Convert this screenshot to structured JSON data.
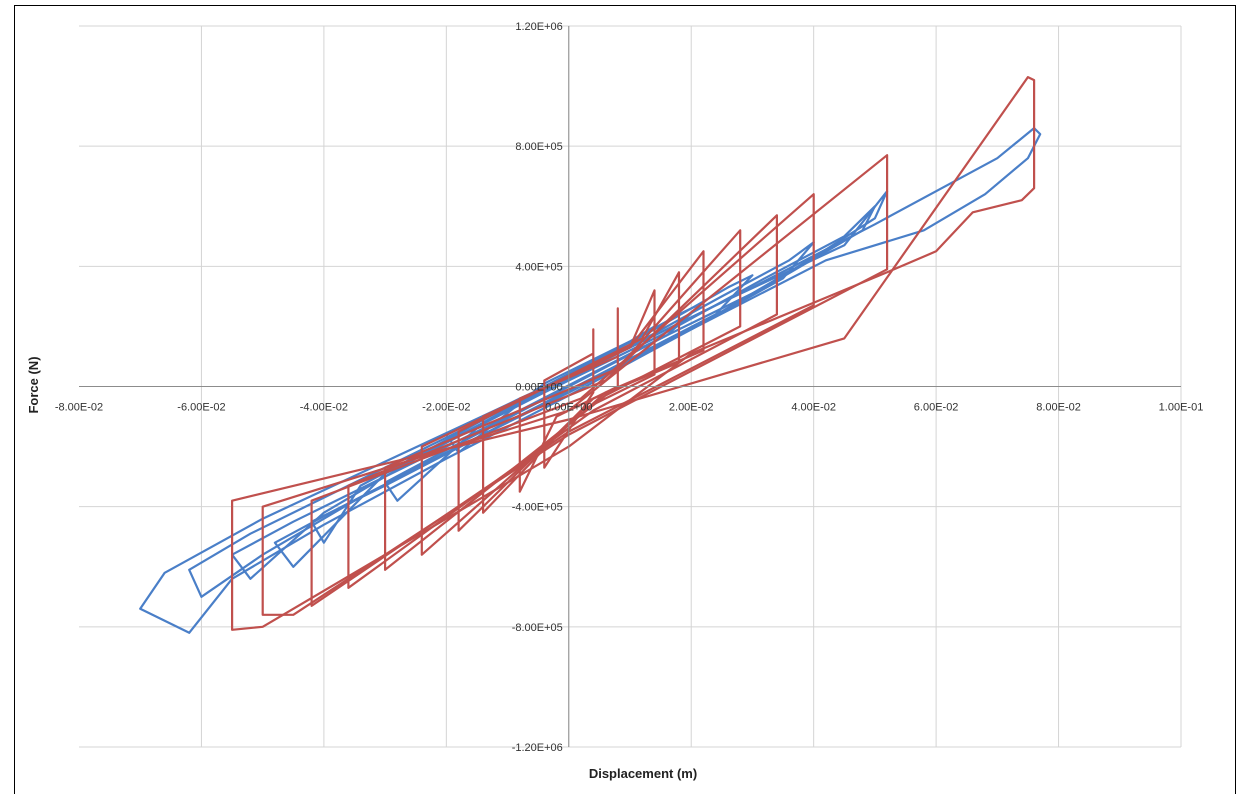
{
  "chart_data": {
    "type": "line",
    "title": "",
    "xlabel": "Displacement (m)",
    "ylabel": "Force (N)",
    "xlim": [
      -0.08,
      0.1
    ],
    "ylim": [
      -1200000,
      1200000
    ],
    "grid": true,
    "x_ticks": [
      -0.08,
      -0.06,
      -0.04,
      -0.02,
      0.0,
      0.02,
      0.04,
      0.06,
      0.08,
      0.1
    ],
    "x_tick_labels": [
      "-8.00E-02",
      "-6.00E-02",
      "-4.00E-02",
      "-2.00E-02",
      "0.00E+00",
      "2.00E-02",
      "4.00E-02",
      "6.00E-02",
      "8.00E-02",
      "1.00E-01"
    ],
    "y_ticks": [
      1200000,
      800000,
      400000,
      0,
      -400000,
      -800000,
      -1200000
    ],
    "y_tick_labels": [
      "1.20E+06",
      "8.00E+05",
      "4.00E+05",
      "0.00E+00",
      "-4.00E+05",
      "-8.00E+05",
      "-1.20E+06"
    ],
    "series": [
      {
        "color": "#4a7fc8",
        "loops": [
          [
            [
              -0.062,
              -820000
            ],
            [
              -0.07,
              -740000
            ],
            [
              -0.066,
              -620000
            ],
            [
              -0.05,
              -440000
            ],
            [
              -0.03,
              -250000
            ],
            [
              -0.01,
              -60000
            ],
            [
              0.01,
              130000
            ],
            [
              0.03,
              330000
            ],
            [
              0.05,
              540000
            ],
            [
              0.07,
              760000
            ],
            [
              0.076,
              860000
            ],
            [
              0.077,
              840000
            ],
            [
              0.075,
              760000
            ],
            [
              0.068,
              640000
            ],
            [
              0.058,
              520000
            ],
            [
              0.042,
              420000
            ],
            [
              0.02,
              190000
            ],
            [
              0.0,
              -30000
            ],
            [
              -0.02,
              -240000
            ],
            [
              -0.04,
              -460000
            ],
            [
              -0.055,
              -640000
            ],
            [
              -0.062,
              -820000
            ]
          ],
          [
            [
              -0.06,
              -700000
            ],
            [
              -0.062,
              -610000
            ],
            [
              -0.052,
              -490000
            ],
            [
              -0.035,
              -320000
            ],
            [
              -0.015,
              -120000
            ],
            [
              0.005,
              80000
            ],
            [
              0.025,
              280000
            ],
            [
              0.045,
              470000
            ],
            [
              0.052,
              650000
            ],
            [
              0.05,
              560000
            ],
            [
              0.04,
              430000
            ],
            [
              0.025,
              250000
            ],
            [
              0.005,
              40000
            ],
            [
              -0.015,
              -170000
            ],
            [
              -0.035,
              -380000
            ],
            [
              -0.05,
              -560000
            ],
            [
              -0.06,
              -700000
            ]
          ],
          [
            [
              -0.052,
              -640000
            ],
            [
              -0.055,
              -560000
            ],
            [
              -0.045,
              -450000
            ],
            [
              -0.028,
              -280000
            ],
            [
              -0.008,
              -80000
            ],
            [
              0.012,
              130000
            ],
            [
              0.032,
              330000
            ],
            [
              0.048,
              520000
            ],
            [
              0.05,
              600000
            ],
            [
              0.045,
              500000
            ],
            [
              0.032,
              360000
            ],
            [
              0.015,
              170000
            ],
            [
              -0.005,
              -30000
            ],
            [
              -0.025,
              -240000
            ],
            [
              -0.04,
              -420000
            ],
            [
              -0.052,
              -640000
            ]
          ],
          [
            [
              -0.045,
              -600000
            ],
            [
              -0.048,
              -520000
            ],
            [
              -0.038,
              -410000
            ],
            [
              -0.02,
              -220000
            ],
            [
              0.0,
              -20000
            ],
            [
              0.02,
              190000
            ],
            [
              0.035,
              360000
            ],
            [
              0.04,
              480000
            ],
            [
              0.036,
              420000
            ],
            [
              0.025,
              300000
            ],
            [
              0.008,
              110000
            ],
            [
              -0.012,
              -100000
            ],
            [
              -0.03,
              -290000
            ],
            [
              -0.045,
              -600000
            ]
          ],
          [
            [
              -0.04,
              -520000
            ],
            [
              -0.042,
              -450000
            ],
            [
              -0.03,
              -330000
            ],
            [
              -0.012,
              -140000
            ],
            [
              0.006,
              50000
            ],
            [
              0.024,
              240000
            ],
            [
              0.03,
              370000
            ],
            [
              0.026,
              330000
            ],
            [
              0.014,
              190000
            ],
            [
              -0.004,
              0
            ],
            [
              -0.022,
              -200000
            ],
            [
              -0.034,
              -330000
            ],
            [
              -0.04,
              -520000
            ]
          ],
          [
            [
              -0.028,
              -380000
            ],
            [
              -0.03,
              -320000
            ],
            [
              -0.018,
              -190000
            ],
            [
              0.0,
              0
            ],
            [
              0.016,
              170000
            ],
            [
              0.022,
              280000
            ],
            [
              0.018,
              240000
            ],
            [
              0.004,
              80000
            ],
            [
              -0.014,
              -120000
            ],
            [
              -0.028,
              -380000
            ]
          ],
          [
            [
              -0.018,
              -220000
            ],
            [
              -0.02,
              -160000
            ],
            [
              -0.008,
              -40000
            ],
            [
              0.008,
              110000
            ],
            [
              0.014,
              200000
            ],
            [
              0.01,
              150000
            ],
            [
              -0.004,
              10000
            ],
            [
              -0.018,
              -220000
            ]
          ]
        ]
      },
      {
        "color": "#c0504d",
        "loops": [
          [
            [
              -0.055,
              -810000
            ],
            [
              -0.055,
              -380000
            ],
            [
              0.0,
              -110000
            ],
            [
              0.045,
              160000
            ],
            [
              0.075,
              1030000
            ],
            [
              0.076,
              1020000
            ],
            [
              0.076,
              660000
            ],
            [
              0.074,
              620000
            ],
            [
              0.066,
              580000
            ],
            [
              0.06,
              450000
            ],
            [
              0.052,
              380000
            ],
            [
              0.02,
              110000
            ],
            [
              0.0,
              -200000
            ],
            [
              -0.05,
              -800000
            ],
            [
              -0.055,
              -810000
            ]
          ],
          [
            [
              -0.05,
              -760000
            ],
            [
              -0.05,
              -400000
            ],
            [
              0.0,
              -80000
            ],
            [
              0.052,
              770000
            ],
            [
              0.052,
              390000
            ],
            [
              0.0,
              -160000
            ],
            [
              -0.045,
              -760000
            ],
            [
              -0.05,
              -760000
            ]
          ],
          [
            [
              -0.042,
              -730000
            ],
            [
              -0.042,
              -380000
            ],
            [
              0.002,
              -40000
            ],
            [
              0.04,
              640000
            ],
            [
              0.04,
              270000
            ],
            [
              0.0,
              -150000
            ],
            [
              -0.042,
              -730000
            ]
          ],
          [
            [
              -0.036,
              -670000
            ],
            [
              -0.036,
              -330000
            ],
            [
              0.006,
              20000
            ],
            [
              0.034,
              570000
            ],
            [
              0.034,
              240000
            ],
            [
              0.004,
              -80000
            ],
            [
              -0.036,
              -670000
            ]
          ],
          [
            [
              -0.03,
              -610000
            ],
            [
              -0.03,
              -270000
            ],
            [
              0.008,
              60000
            ],
            [
              0.028,
              520000
            ],
            [
              0.028,
              200000
            ],
            [
              0.006,
              -30000
            ],
            [
              -0.03,
              -610000
            ]
          ],
          [
            [
              -0.024,
              -560000
            ],
            [
              -0.024,
              -200000
            ],
            [
              0.01,
              130000
            ],
            [
              0.022,
              450000
            ],
            [
              0.022,
              120000
            ],
            [
              0.006,
              -20000
            ],
            [
              -0.024,
              -560000
            ]
          ],
          [
            [
              -0.018,
              -480000
            ],
            [
              -0.018,
              -150000
            ],
            [
              0.012,
              160000
            ],
            [
              0.018,
              380000
            ],
            [
              0.018,
              80000
            ],
            [
              0.004,
              -40000
            ],
            [
              -0.018,
              -480000
            ]
          ],
          [
            [
              -0.014,
              -420000
            ],
            [
              -0.014,
              -100000
            ],
            [
              0.01,
              130000
            ],
            [
              0.014,
              320000
            ],
            [
              0.014,
              40000
            ],
            [
              0.002,
              -80000
            ],
            [
              -0.014,
              -420000
            ]
          ],
          [
            [
              -0.008,
              -350000
            ],
            [
              -0.008,
              -40000
            ],
            [
              0.008,
              100000
            ],
            [
              0.008,
              260000
            ],
            [
              0.008,
              0
            ],
            [
              -0.002,
              -100000
            ],
            [
              -0.008,
              -350000
            ]
          ],
          [
            [
              -0.004,
              -270000
            ],
            [
              -0.004,
              20000
            ],
            [
              0.004,
              110000
            ],
            [
              0.004,
              190000
            ],
            [
              0.004,
              -20000
            ],
            [
              -0.004,
              -270000
            ]
          ]
        ]
      }
    ]
  }
}
